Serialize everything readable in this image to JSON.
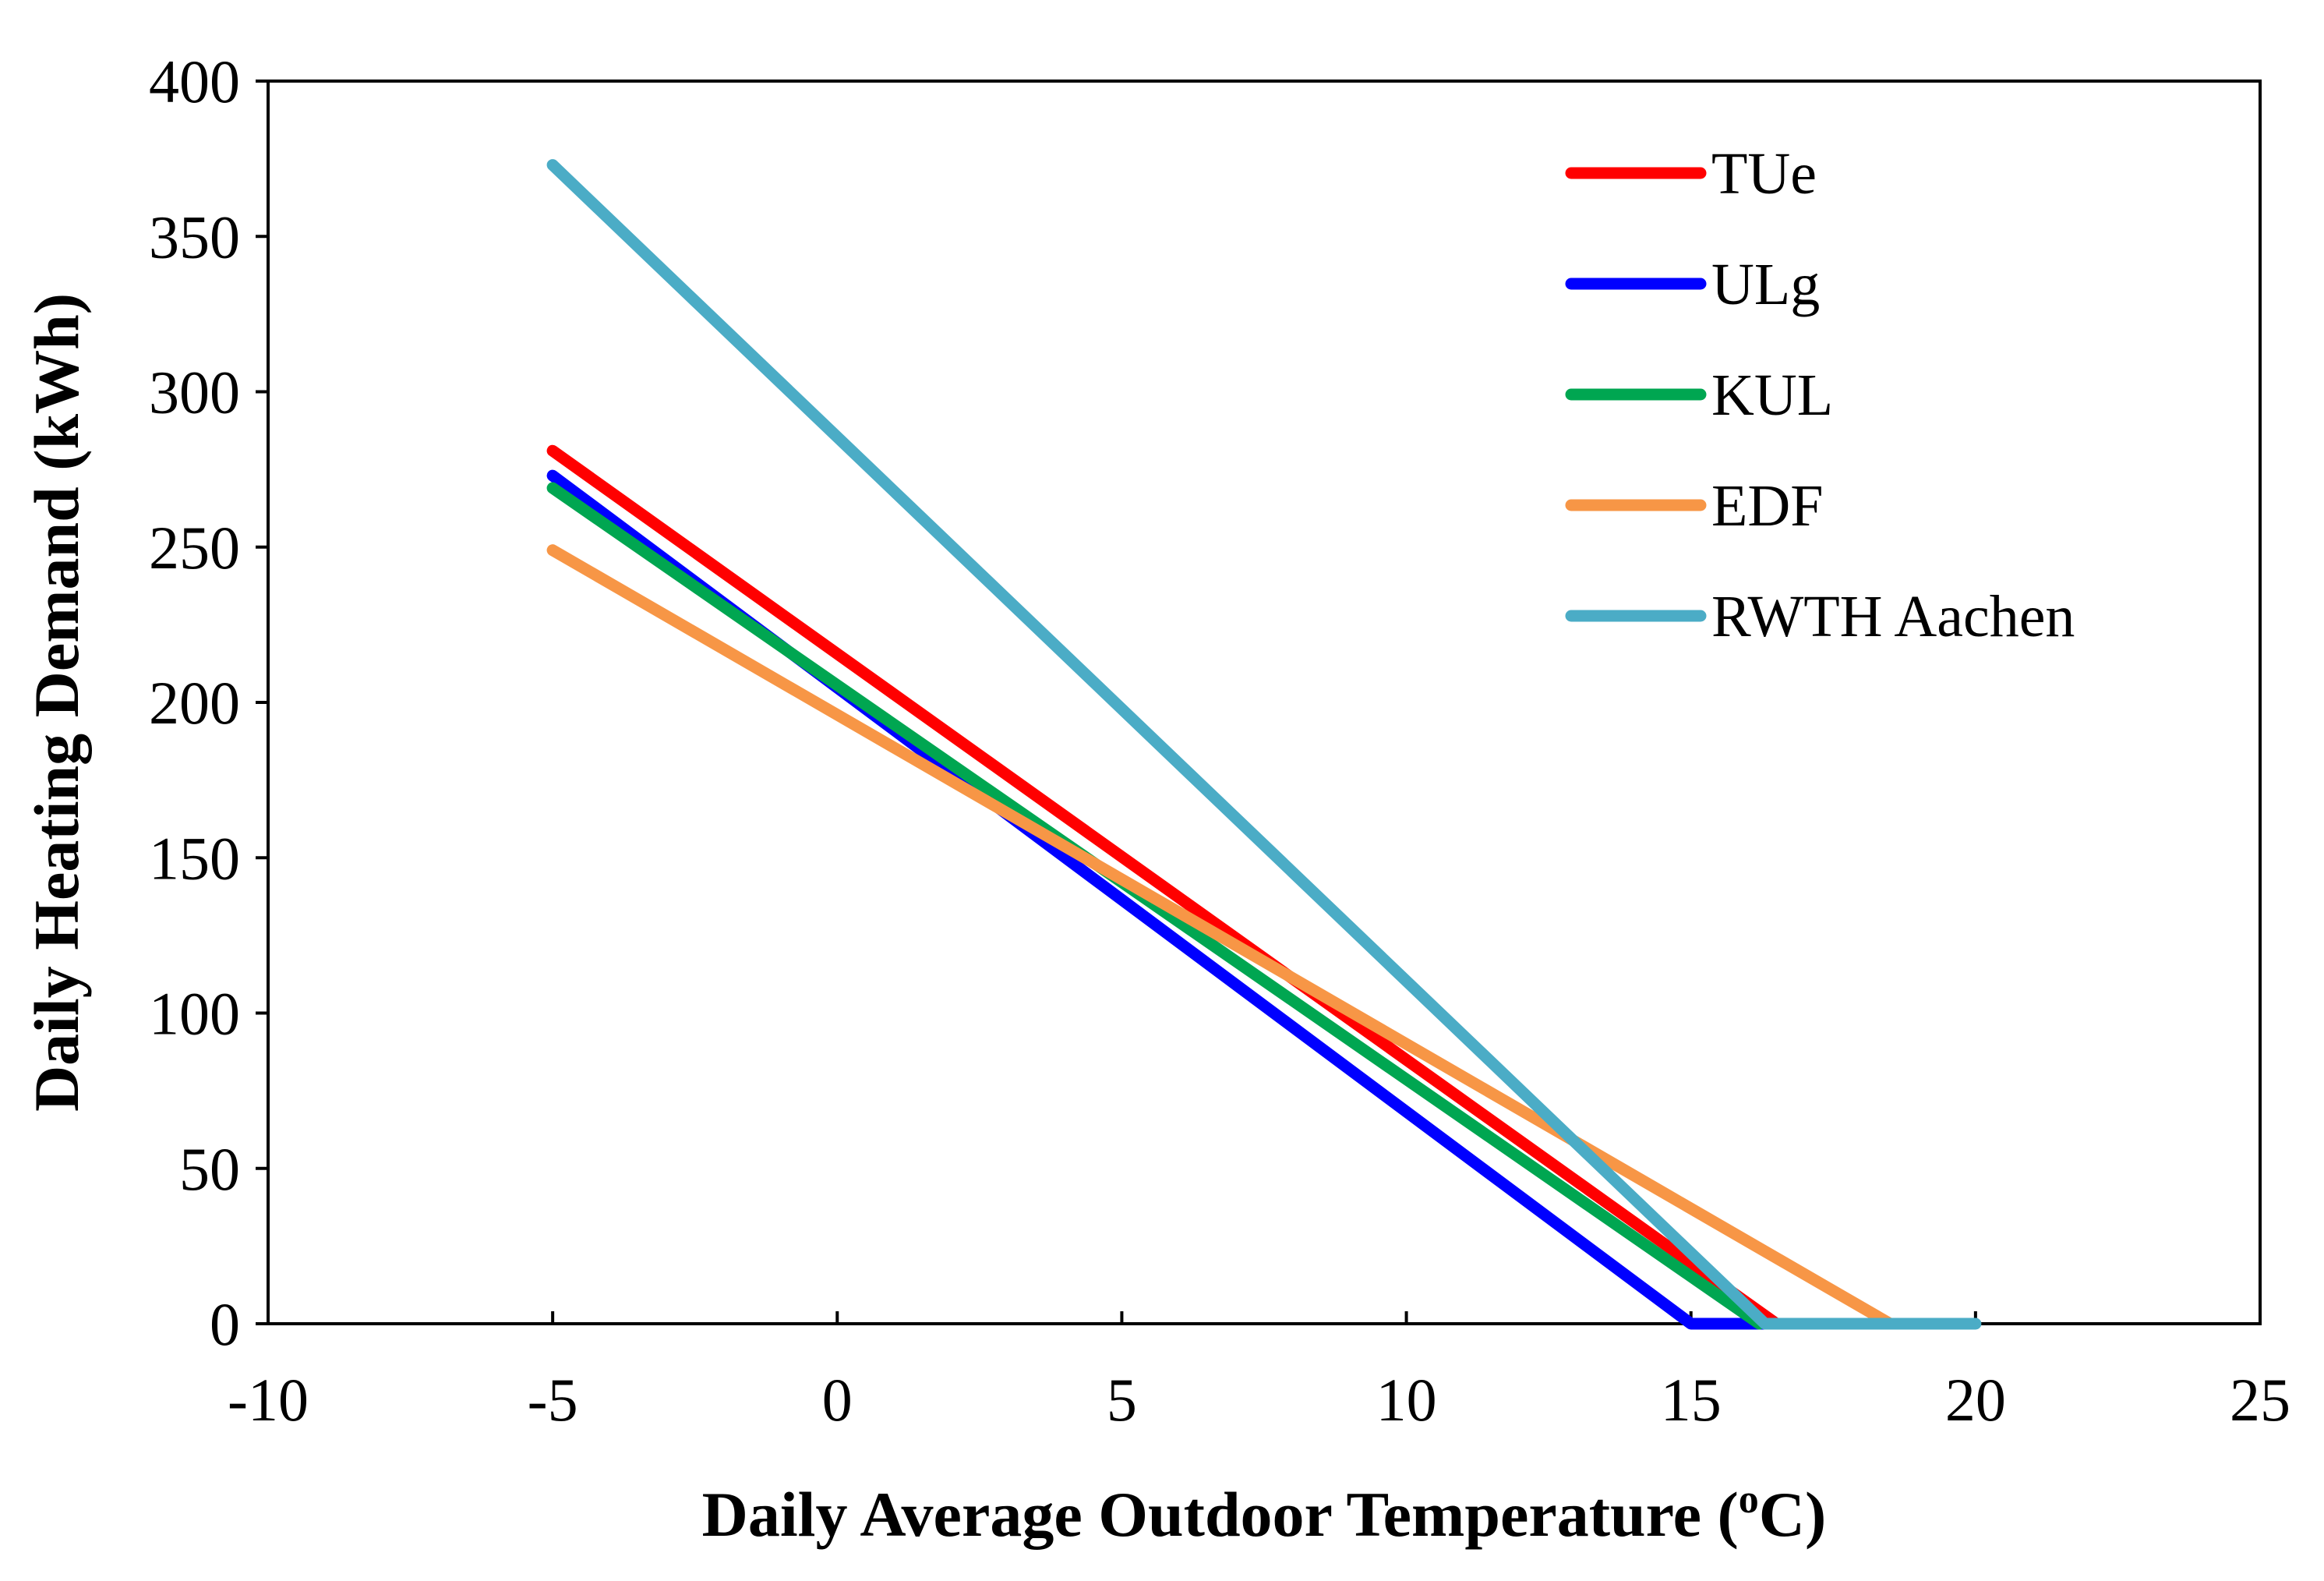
{
  "chart_data": {
    "type": "line",
    "title": "",
    "xlabel": "Daily Average Outdoor Temperature",
    "xlabel_unit_prefix": "(",
    "xlabel_unit_sup": "o",
    "xlabel_unit_suffix": "C)",
    "ylabel": "Daily Heating Demand (kWh)",
    "xlim": [
      -10,
      25
    ],
    "ylim": [
      0,
      400
    ],
    "xticks": [
      -10,
      -5,
      0,
      5,
      10,
      15,
      20,
      25
    ],
    "yticks": [
      0,
      50,
      100,
      150,
      200,
      250,
      300,
      350,
      400
    ],
    "grid": false,
    "legend_position": "top-right",
    "series": [
      {
        "name": "TUe",
        "color": "#ff0000",
        "points": [
          [
            -5,
            281
          ],
          [
            16.5,
            0
          ]
        ]
      },
      {
        "name": "ULg",
        "color": "#0000ff",
        "points": [
          [
            -5,
            273
          ],
          [
            15,
            0
          ],
          [
            16.3,
            0
          ]
        ]
      },
      {
        "name": "KUL",
        "color": "#00a651",
        "points": [
          [
            -5,
            269
          ],
          [
            16.2,
            0
          ]
        ]
      },
      {
        "name": "EDF",
        "color": "#f79646",
        "points": [
          [
            -5,
            249
          ],
          [
            18.5,
            0
          ]
        ]
      },
      {
        "name": "RWTH Aachen",
        "color": "#4bacc6",
        "points": [
          [
            -5,
            373
          ],
          [
            16.3,
            0
          ],
          [
            20,
            0
          ]
        ]
      }
    ]
  }
}
